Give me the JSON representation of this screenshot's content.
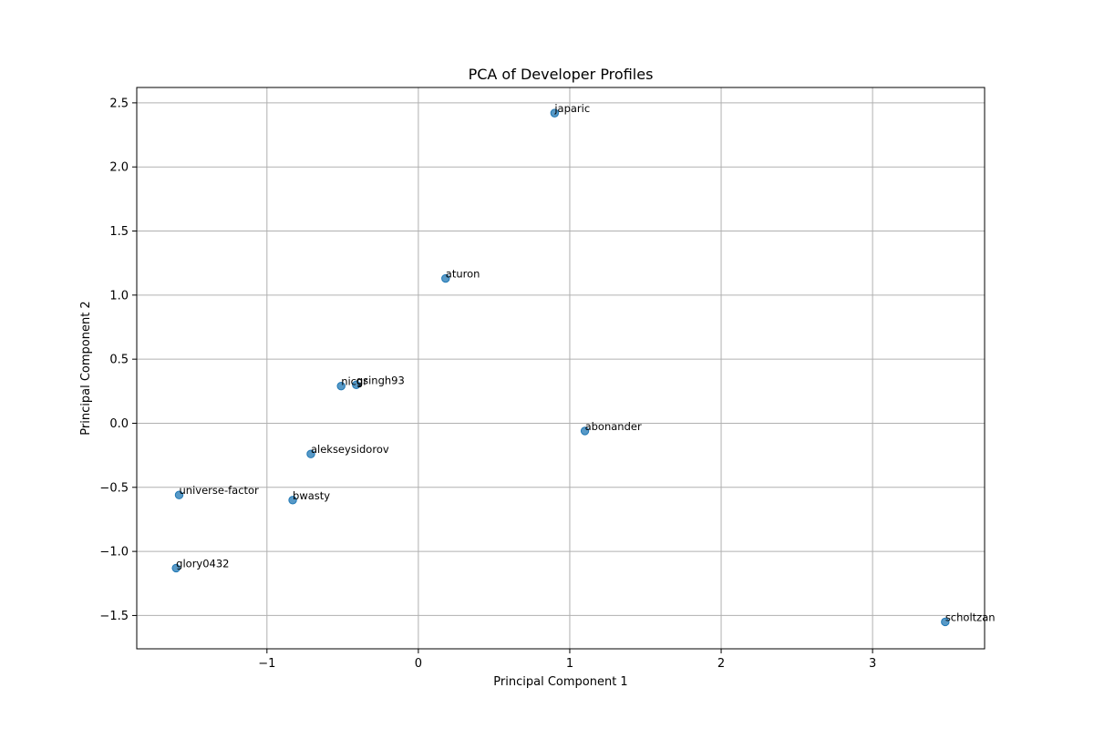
{
  "chart_data": {
    "type": "scatter",
    "title": "PCA of Developer Profiles",
    "xlabel": "Principal Component 1",
    "ylabel": "Principal Component 2",
    "xlim": [
      -1.86,
      3.74
    ],
    "ylim": [
      -1.76,
      2.62
    ],
    "xticks": [
      -1,
      0,
      1,
      2,
      3
    ],
    "xtick_labels": [
      "−1",
      "0",
      "1",
      "2",
      "3"
    ],
    "yticks": [
      -1.5,
      -1.0,
      -0.5,
      0.0,
      0.5,
      1.0,
      1.5,
      2.0,
      2.5
    ],
    "ytick_labels": [
      "−1.5",
      "−1.0",
      "−0.5",
      "0.0",
      "0.5",
      "1.0",
      "1.5",
      "2.0",
      "2.5"
    ],
    "grid": true,
    "point_color": "#1f77b4",
    "points": [
      {
        "label": "japaric",
        "x": 0.9,
        "y": 2.42
      },
      {
        "label": "aturon",
        "x": 0.18,
        "y": 1.13
      },
      {
        "label": "nicgr",
        "x": -0.51,
        "y": 0.29
      },
      {
        "label": "gsingh93",
        "x": -0.41,
        "y": 0.3
      },
      {
        "label": "abonander",
        "x": 1.1,
        "y": -0.06
      },
      {
        "label": "alekseysidorov",
        "x": -0.71,
        "y": -0.24
      },
      {
        "label": "universe-factor",
        "x": -1.58,
        "y": -0.56
      },
      {
        "label": "bwasty",
        "x": -0.83,
        "y": -0.6
      },
      {
        "label": "glory0432",
        "x": -1.6,
        "y": -1.13
      },
      {
        "label": "scholtzan",
        "x": 3.48,
        "y": -1.55
      }
    ]
  }
}
